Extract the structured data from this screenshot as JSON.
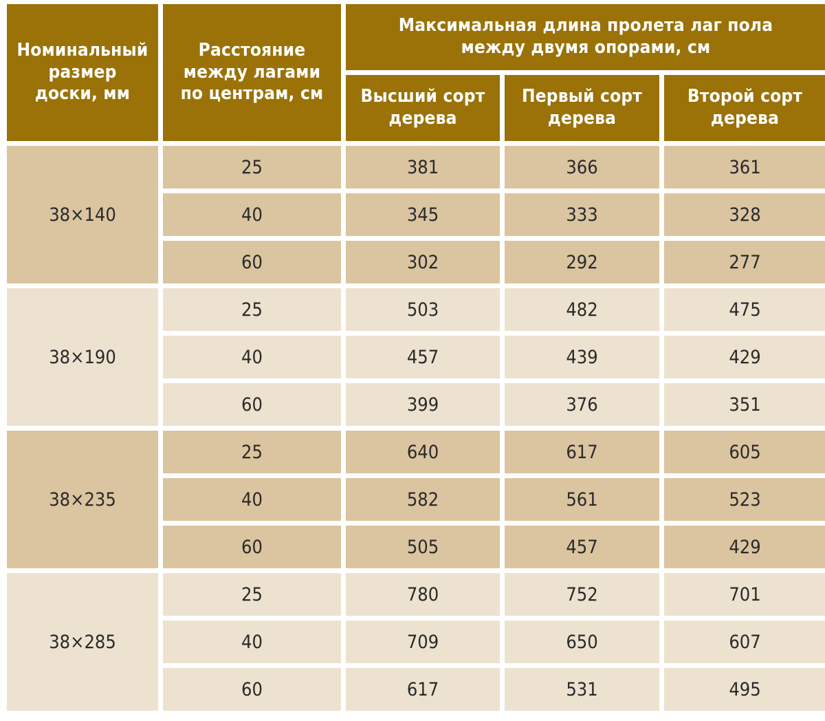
{
  "headers": {
    "size": "Номинальный\nразмер\nдоски, мм",
    "spacing": "Расстояние\nмежду лагами\nпо центрам, см",
    "span": "Максимальная длина пролета лаг пола\nмежду двумя опорами, см",
    "grade_top": "Высший сорт\nдерева",
    "grade_first": "Первый сорт\nдерева",
    "grade_second": "Второй сорт\nдерева"
  },
  "groups": [
    {
      "size": "38×140",
      "rows": [
        {
          "spacing": "25",
          "top": "381",
          "first": "366",
          "second": "361"
        },
        {
          "spacing": "40",
          "top": "345",
          "first": "333",
          "second": "328"
        },
        {
          "spacing": "60",
          "top": "302",
          "first": "292",
          "second": "277"
        }
      ]
    },
    {
      "size": "38×190",
      "rows": [
        {
          "spacing": "25",
          "top": "503",
          "first": "482",
          "second": "475"
        },
        {
          "spacing": "40",
          "top": "457",
          "first": "439",
          "second": "429"
        },
        {
          "spacing": "60",
          "top": "399",
          "first": "376",
          "second": "351"
        }
      ]
    },
    {
      "size": "38×235",
      "rows": [
        {
          "spacing": "25",
          "top": "640",
          "first": "617",
          "second": "605"
        },
        {
          "spacing": "40",
          "top": "582",
          "first": "561",
          "second": "523"
        },
        {
          "spacing": "60",
          "top": "505",
          "first": "457",
          "second": "429"
        }
      ]
    },
    {
      "size": "38×285",
      "rows": [
        {
          "spacing": "25",
          "top": "780",
          "first": "752",
          "second": "701"
        },
        {
          "spacing": "40",
          "top": "709",
          "first": "650",
          "second": "607"
        },
        {
          "spacing": "60",
          "top": "617",
          "first": "531",
          "second": "495"
        }
      ]
    }
  ],
  "colors": {
    "header_bg": "#9a7208",
    "header_text": "#ffffff",
    "band_dark": "#dbc4a0",
    "band_light": "#ece2cf"
  }
}
